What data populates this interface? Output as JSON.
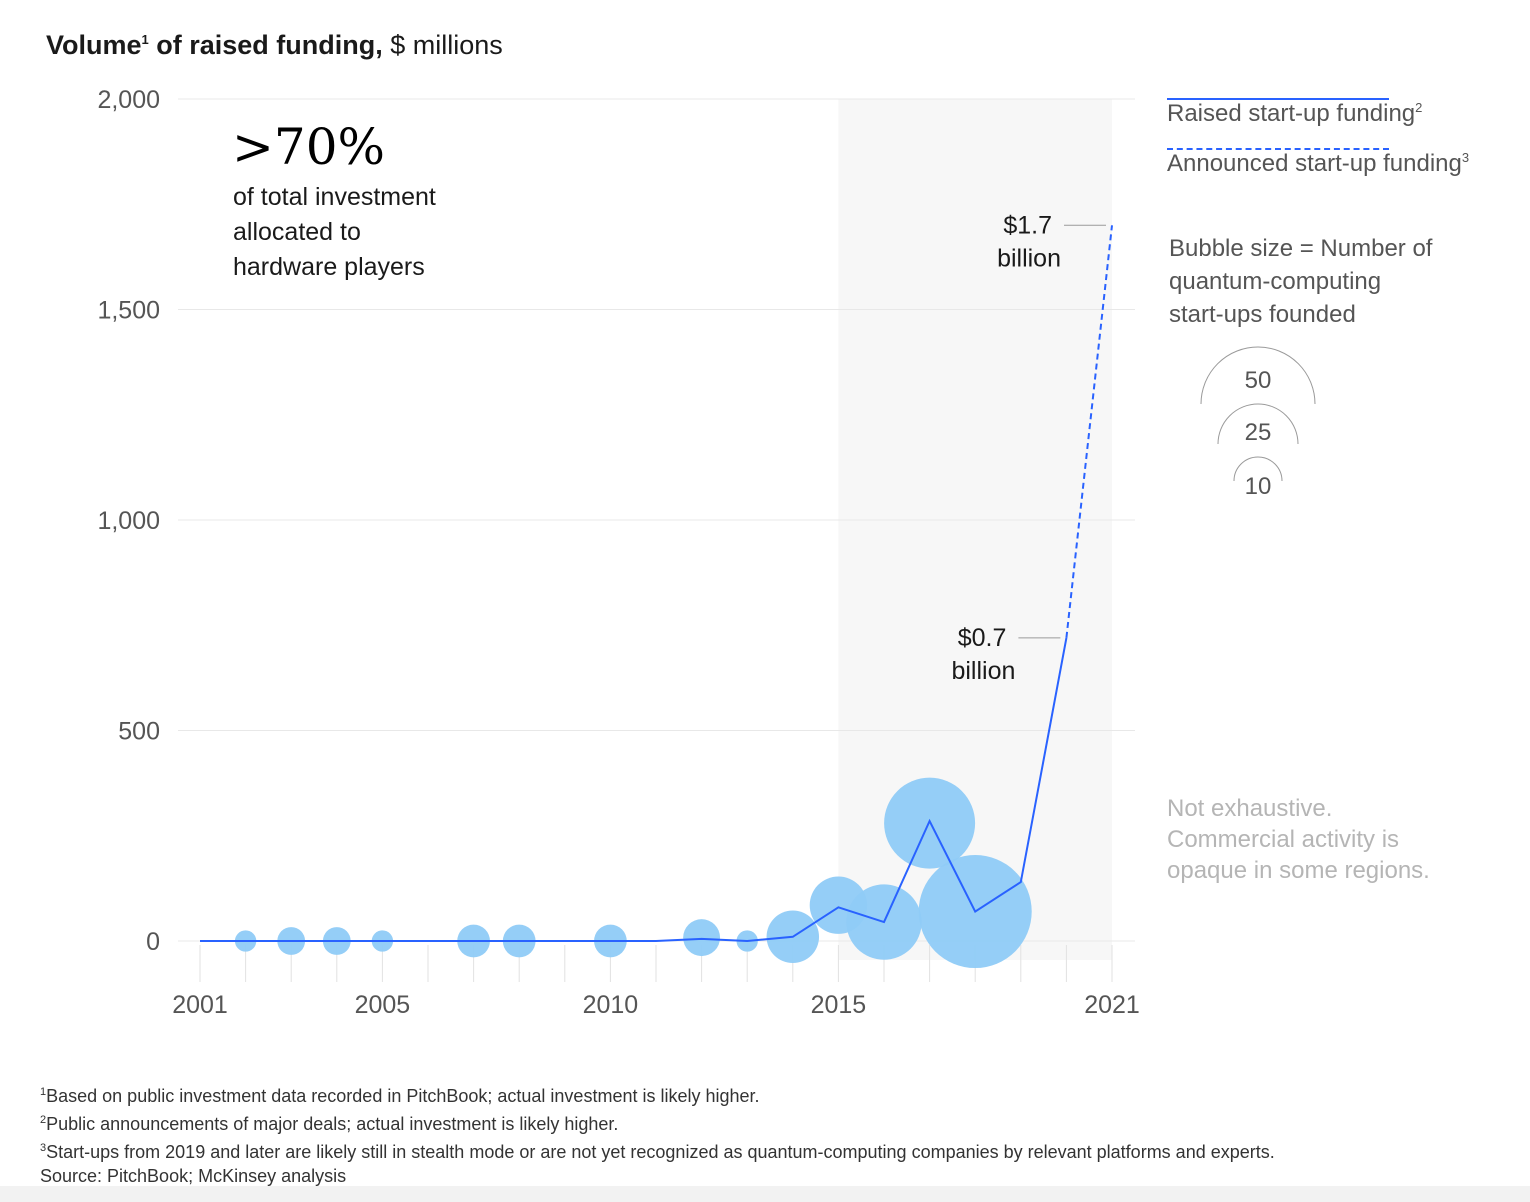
{
  "header": {
    "title_bold": "Volume",
    "title_sup": "1",
    "title_bold2": " of raised funding,",
    "title_unit": " $ millions"
  },
  "callout": {
    "big": ">70%",
    "lines": [
      "of total investment",
      "allocated to",
      "hardware players"
    ]
  },
  "legend": {
    "raised": {
      "label": "Raised start-up funding",
      "sup": "2"
    },
    "announced": {
      "label": "Announced start-up funding",
      "sup": "3"
    },
    "bubble_title": [
      "Bubble size = Number of",
      "quantum-computing",
      "start-ups founded"
    ],
    "bubble_sizes": [
      "50",
      "25",
      "10"
    ]
  },
  "note": [
    "Not exhaustive.",
    "Commercial activity is",
    "opaque in some regions."
  ],
  "footnotes": [
    {
      "sup": "1",
      "text": "Based on public investment data recorded in PitchBook; actual investment is likely higher."
    },
    {
      "sup": "2",
      "text": "Public announcements of major deals; actual investment is likely higher."
    },
    {
      "sup": "3",
      "text": "Start-ups from 2019 and later are likely still in stealth mode or are not yet recognized as quantum-computing companies by relevant platforms and experts."
    },
    {
      "sup": "",
      "text": " Source: PitchBook; McKinsey analysis"
    }
  ],
  "colors": {
    "line": "#2962ff",
    "bubble": "#8fcbf7",
    "shade": "#f7f7f7",
    "grid": "#e8e8e8",
    "axis_text": "#555555"
  },
  "chart_data": {
    "type": "line",
    "ylim": [
      0,
      2000
    ],
    "xlim": [
      2001,
      2021
    ],
    "yticks": [
      0,
      500,
      1000,
      1500,
      2000
    ],
    "ytick_labels": [
      "0",
      "500",
      "1,000",
      "1,500",
      "2,000"
    ],
    "xtick_labels": [
      "2001",
      "2005",
      "2010",
      "2015",
      "2021"
    ],
    "xtick_values": [
      2001,
      2005,
      2010,
      2015,
      2021
    ],
    "shaded_from_year": 2015,
    "series": [
      {
        "name": "Raised start-up funding",
        "style": "solid",
        "x": [
          2001,
          2002,
          2003,
          2004,
          2005,
          2006,
          2007,
          2008,
          2009,
          2010,
          2011,
          2012,
          2013,
          2014,
          2015,
          2016,
          2017,
          2018,
          2019,
          2020
        ],
        "y": [
          0,
          0,
          0,
          0,
          0,
          0,
          0,
          0,
          0,
          0,
          0,
          5,
          0,
          10,
          80,
          45,
          285,
          70,
          140,
          720
        ]
      },
      {
        "name": "Announced start-up funding",
        "style": "dashed",
        "x": [
          2020,
          2021
        ],
        "y": [
          720,
          1700
        ]
      }
    ],
    "bubbles": {
      "x": [
        2002,
        2003,
        2004,
        2005,
        2007,
        2008,
        2010,
        2012,
        2013,
        2014,
        2015,
        2016,
        2017,
        2018
      ],
      "y": [
        0,
        0,
        0,
        0,
        0,
        0,
        0,
        8,
        0,
        10,
        85,
        45,
        280,
        70
      ],
      "count": [
        2,
        4,
        4,
        2,
        6,
        6,
        6,
        8,
        2,
        18,
        22,
        40,
        60,
        95
      ]
    },
    "annotations": [
      {
        "x": 2021,
        "y": 1700,
        "value": "$1.7",
        "unit": "billion"
      },
      {
        "x": 2020,
        "y": 720,
        "value": "$0.7",
        "unit": "billion"
      }
    ]
  }
}
